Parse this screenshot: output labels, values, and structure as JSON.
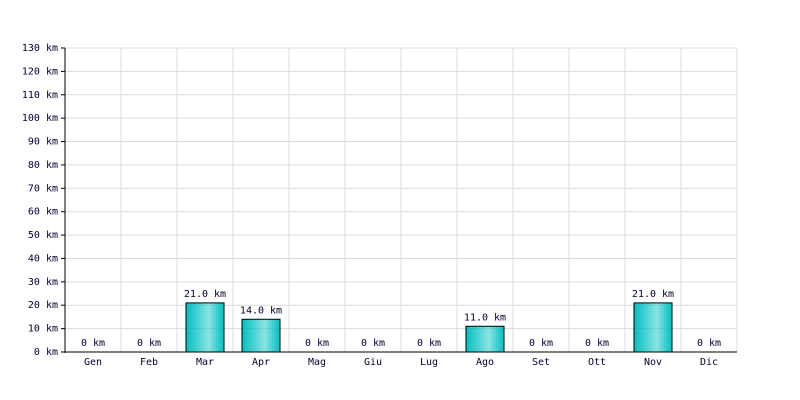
{
  "chart_data": {
    "type": "bar",
    "categories": [
      "Gen",
      "Feb",
      "Mar",
      "Apr",
      "Mag",
      "Giu",
      "Lug",
      "Ago",
      "Set",
      "Ott",
      "Nov",
      "Dic"
    ],
    "values": [
      0,
      0,
      21,
      14,
      0,
      0,
      0,
      11,
      0,
      0,
      21,
      0
    ],
    "value_labels": [
      "0 km",
      "0 km",
      "21.0 km",
      "14.0 km",
      "0 km",
      "0 km",
      "0 km",
      "11.0 km",
      "0 km",
      "0 km",
      "21.0 km",
      "0 km"
    ],
    "color": "#00c0c0",
    "ylim": [
      0,
      130
    ],
    "yticks": [
      {
        "value": 0,
        "label": "0 km"
      },
      {
        "value": 10,
        "label": "10 km"
      },
      {
        "value": 20,
        "label": "20 km"
      },
      {
        "value": 30,
        "label": "30 km"
      },
      {
        "value": 40,
        "label": "40 km"
      },
      {
        "value": 50,
        "label": "50 km"
      },
      {
        "value": 60,
        "label": "60 km"
      },
      {
        "value": 70,
        "label": "70 km"
      },
      {
        "value": 80,
        "label": "80 km"
      },
      {
        "value": 90,
        "label": "90 km"
      },
      {
        "value": 100,
        "label": "100 km"
      },
      {
        "value": 110,
        "label": "110 km"
      },
      {
        "value": 120,
        "label": "120 km"
      },
      {
        "value": 130,
        "label": "130 km"
      }
    ],
    "grid": true
  }
}
